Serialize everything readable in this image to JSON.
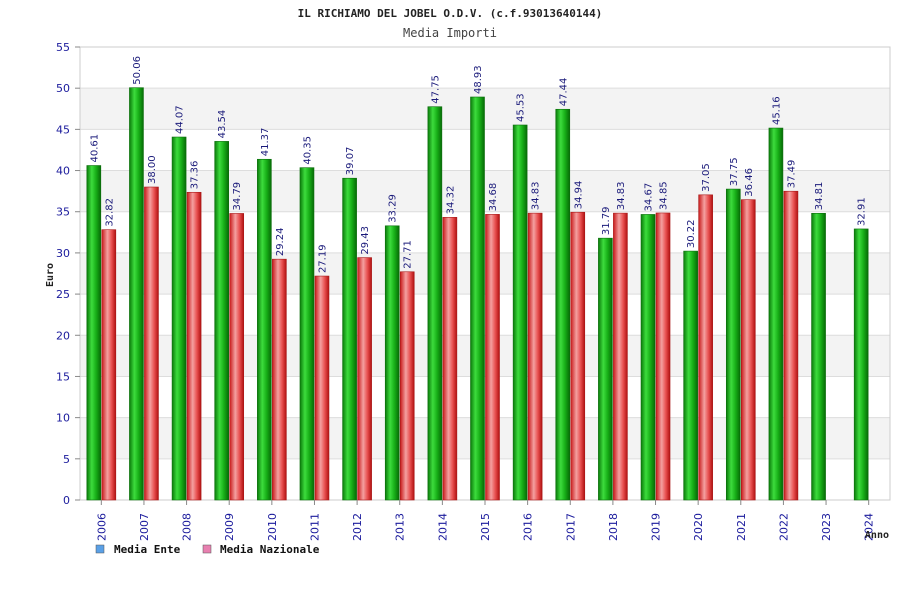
{
  "chart_data": {
    "type": "bar",
    "title": "IL RICHIAMO DEL JOBEL O.D.V. (c.f.93013640144)",
    "subtitle": "Media Importi",
    "ylabel": "Euro",
    "xlabel": "Anno",
    "ylim": [
      0,
      55
    ],
    "yticks": [
      0,
      5,
      10,
      15,
      20,
      25,
      30,
      35,
      40,
      45,
      50,
      55
    ],
    "grid": true,
    "legend_position": "bottom-left",
    "categories": [
      "2006",
      "2007",
      "2008",
      "2009",
      "2010",
      "2011",
      "2012",
      "2013",
      "2014",
      "2015",
      "2016",
      "2017",
      "2018",
      "2019",
      "2020",
      "2021",
      "2022",
      "2023",
      "2024"
    ],
    "series": [
      {
        "name": "Media Ente",
        "color": "#22b822",
        "legend_color": "#5aa0e6",
        "values": [
          40.61,
          50.06,
          44.07,
          43.54,
          41.37,
          40.35,
          39.07,
          33.29,
          47.75,
          48.93,
          45.53,
          47.44,
          31.79,
          34.67,
          30.22,
          37.75,
          45.16,
          34.81,
          32.91
        ],
        "labels": [
          "40.61",
          "50.06",
          "44.07",
          "43.54",
          "41.37",
          "40.35",
          "39.07",
          "33.29",
          "47.75",
          "48.93",
          "45.53",
          "47.44",
          "31.79",
          "34.67",
          "30.22",
          "37.75",
          "45.16",
          "34.81",
          "32.91"
        ]
      },
      {
        "name": "Media Nazionale",
        "color": "#e23a3a",
        "legend_color": "#e880b0",
        "values": [
          32.82,
          38.0,
          37.36,
          34.79,
          29.24,
          27.19,
          29.43,
          27.71,
          34.32,
          34.68,
          34.83,
          34.94,
          34.83,
          34.85,
          37.05,
          36.46,
          37.49,
          null,
          null
        ],
        "labels": [
          "32.82",
          "38.00",
          "37.36",
          "34.79",
          "29.24",
          "27.19",
          "29.43",
          "27.71",
          "34.32",
          "34.68",
          "34.83",
          "34.94",
          "34.83",
          "34.85",
          "37.05",
          "36.46",
          "37.49",
          "",
          ""
        ]
      }
    ]
  }
}
